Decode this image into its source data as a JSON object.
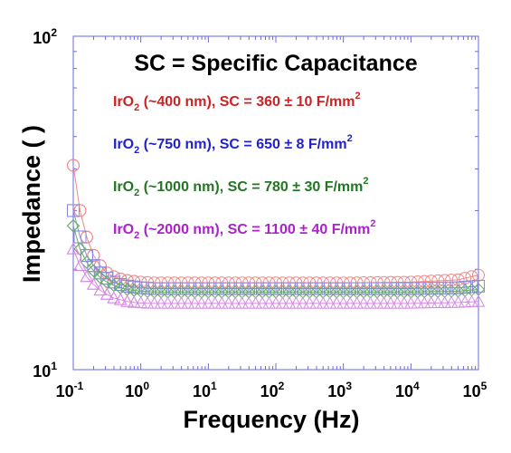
{
  "chart_data": {
    "type": "scatter",
    "title": "SC = Specific Capacitance",
    "xlabel": "Frequency (Hz)",
    "ylabel": "Impedance (  )",
    "x_scale": "log",
    "y_scale": "log",
    "xlim": [
      0.1,
      100000
    ],
    "ylim": [
      10,
      100
    ],
    "x_ticks": [
      {
        "base": "10",
        "exp": "-1",
        "value": 0.1
      },
      {
        "base": "10",
        "exp": "0",
        "value": 1
      },
      {
        "base": "10",
        "exp": "1",
        "value": 10
      },
      {
        "base": "10",
        "exp": "2",
        "value": 100
      },
      {
        "base": "10",
        "exp": "3",
        "value": 1000
      },
      {
        "base": "10",
        "exp": "4",
        "value": 10000
      },
      {
        "base": "10",
        "exp": "5",
        "value": 100000
      }
    ],
    "y_ticks": [
      {
        "base": "10",
        "exp": "1",
        "value": 10
      },
      {
        "base": "10",
        "exp": "2",
        "value": 100
      }
    ],
    "annotations": [
      {
        "pre": "IrO",
        "sub": "2",
        "mid": " (~400 nm), SC = 360 ± 10   F/mm",
        "sup": "2",
        "color": "#cc2222"
      },
      {
        "pre": "IrO",
        "sub": "2",
        "mid": " (~750 nm), SC = 650 ± 8   F/mm",
        "sup": "2",
        "color": "#2222cc"
      },
      {
        "pre": "IrO",
        "sub": "2",
        "mid": " (~1000 nm), SC = 780 ± 30   F/mm",
        "sup": "2",
        "color": "#227722"
      },
      {
        "pre": "IrO",
        "sub": "2",
        "mid": " (~2000 nm), SC = 1100 ± 40   F/mm",
        "sup": "2",
        "color": "#aa22cc"
      }
    ],
    "series": [
      {
        "marker": "circle",
        "color": "#f08888",
        "x": [
          0.1,
          0.126,
          0.158,
          0.2,
          0.251,
          0.316,
          0.398,
          0.501,
          0.631,
          0.794,
          1.0,
          1.26,
          1.58,
          2.0,
          3.16,
          10,
          100,
          1000,
          10000,
          50000,
          100000
        ],
        "y": [
          41,
          30,
          25,
          22,
          20.5,
          19.5,
          19.0,
          18.7,
          18.5,
          18.4,
          18.3,
          18.25,
          18.2,
          18.2,
          18.2,
          18.2,
          18.2,
          18.2,
          18.3,
          18.6,
          19.2
        ]
      },
      {
        "marker": "square",
        "color": "#8a8ae6",
        "x": [
          0.1,
          0.126,
          0.158,
          0.2,
          0.251,
          0.316,
          0.398,
          0.501,
          0.631,
          0.794,
          1.0,
          1.26,
          1.58,
          2.0,
          3.16,
          10,
          100,
          1000,
          10000,
          50000,
          100000
        ],
        "y": [
          30,
          25,
          22,
          20.5,
          19.5,
          18.8,
          18.3,
          18.0,
          17.8,
          17.7,
          17.6,
          17.55,
          17.5,
          17.5,
          17.5,
          17.5,
          17.5,
          17.5,
          17.5,
          17.6,
          17.8
        ]
      },
      {
        "marker": "diamond",
        "color": "#6aaa6a",
        "x": [
          0.1,
          0.126,
          0.158,
          0.2,
          0.251,
          0.316,
          0.398,
          0.501,
          0.631,
          0.794,
          1.0,
          1.26,
          1.58,
          2.0,
          3.16,
          10,
          100,
          1000,
          10000,
          50000,
          100000
        ],
        "y": [
          27,
          23,
          21,
          19.8,
          18.9,
          18.3,
          17.9,
          17.6,
          17.4,
          17.3,
          17.2,
          17.15,
          17.1,
          17.1,
          17.1,
          17.1,
          17.1,
          17.1,
          17.1,
          17.2,
          17.4
        ]
      },
      {
        "marker": "triangle",
        "color": "#d68ae6",
        "x": [
          0.1,
          0.126,
          0.158,
          0.2,
          0.251,
          0.316,
          0.398,
          0.501,
          0.631,
          0.794,
          1.0,
          1.26,
          1.58,
          2.0,
          3.16,
          10,
          100,
          1000,
          10000,
          50000,
          100000
        ],
        "y": [
          23,
          20.5,
          19.0,
          18.0,
          17.3,
          16.8,
          16.4,
          16.2,
          16.0,
          15.9,
          15.85,
          15.8,
          15.8,
          15.8,
          15.8,
          15.8,
          15.8,
          15.8,
          15.8,
          15.9,
          16.0
        ]
      }
    ],
    "frame_color": "#6a6ae0",
    "grid": false,
    "legend": "none"
  }
}
